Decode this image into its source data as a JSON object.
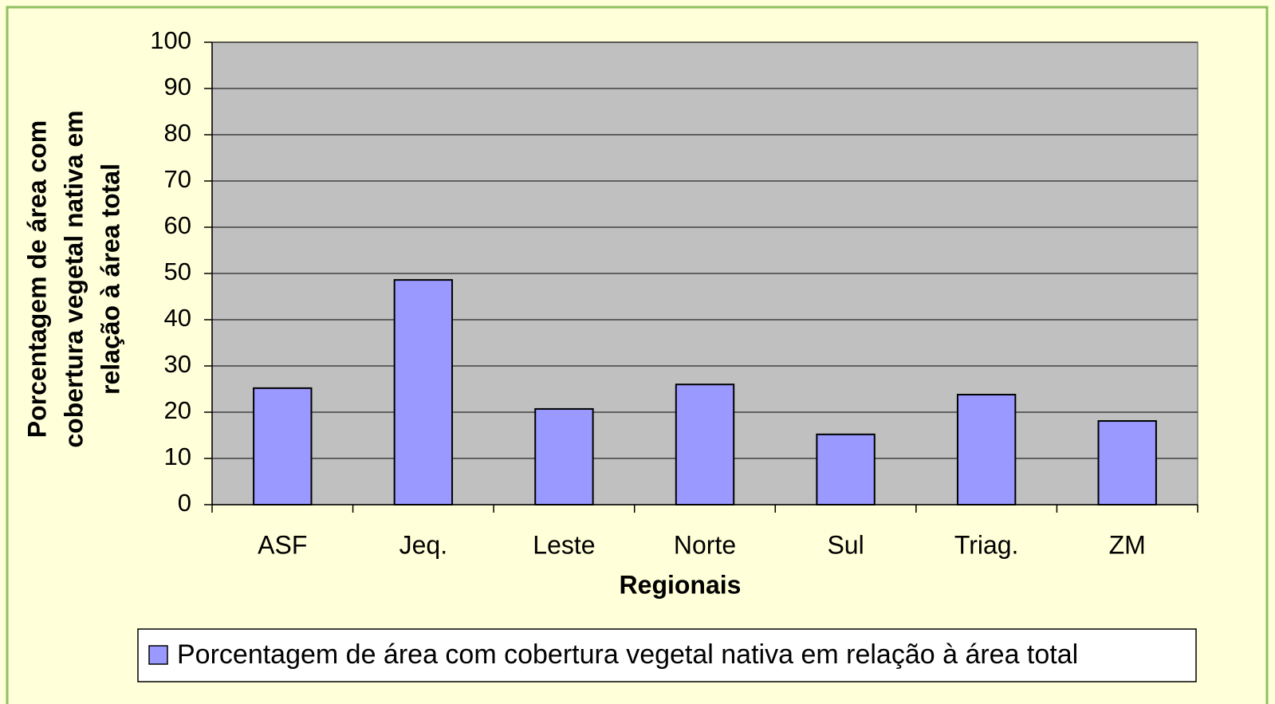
{
  "chart_data": {
    "type": "bar",
    "xlabel": "Regionais",
    "ylabel": [
      "Porcentagem de área com",
      "cobertura vegetal nativa em",
      "relação à área total"
    ],
    "categories": [
      "ASF",
      "Jeq.",
      "Leste",
      "Norte",
      "Sul",
      "Triag.",
      "ZM"
    ],
    "series": [
      {
        "name": "Porcentagem de área com cobertura vegetal nativa em relação à área total",
        "color": "#9999ff",
        "values": [
          25.2,
          48.6,
          20.7,
          26.0,
          15.2,
          23.8,
          18.1
        ]
      }
    ],
    "ylim": [
      0,
      100
    ],
    "yticks": [
      0,
      10,
      20,
      30,
      40,
      50,
      60,
      70,
      80,
      90,
      100
    ],
    "grid": true,
    "legend": "bottom"
  }
}
